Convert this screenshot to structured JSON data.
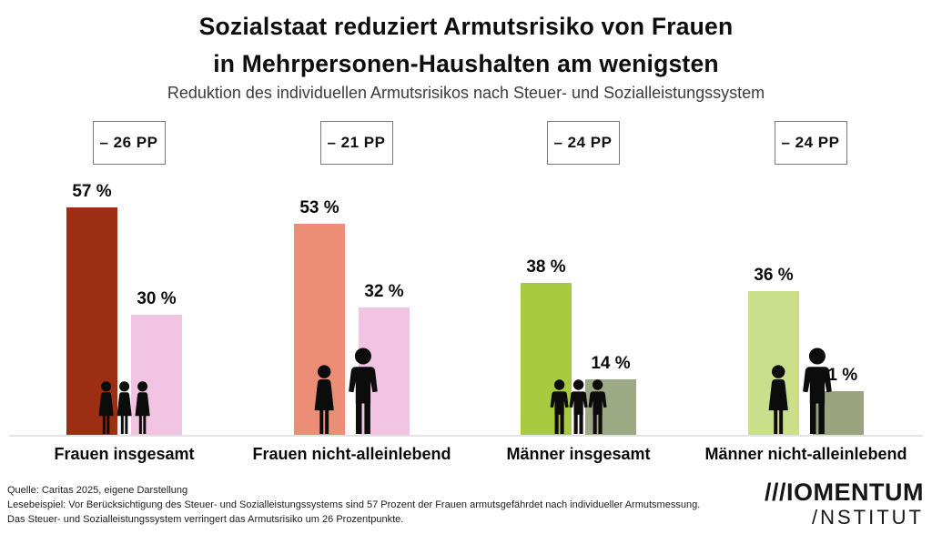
{
  "title": {
    "line1": "Sozialstaat reduziert Armutsrisiko von Frauen",
    "line2": "in Mehrpersonen-Haushalten am wenigsten"
  },
  "subtitle": "Reduktion des individuellen Armutsrisikos nach Steuer- und Sozialleistungssystem",
  "chart_data": {
    "type": "bar",
    "title": "Sozialstaat reduziert Armutsrisiko von Frauen in Mehrpersonen-Haushalten am wenigsten",
    "subtitle": "Reduktion des individuellen Armutsrisikos nach Steuer- und Sozialleistungssystem",
    "unit": "%",
    "ylim": [
      0,
      60
    ],
    "grid": false,
    "legend": false,
    "categories": [
      "Frauen insgesamt",
      "Frauen nicht-alleinlebend",
      "Männer insgesamt",
      "Männer nicht-alleinlebend"
    ],
    "groups": [
      {
        "category": "Frauen insgesamt",
        "annotation": "– 26 PP",
        "pictogram": "three-women",
        "bars": [
          {
            "value": 57,
            "label": "57 %",
            "color": "#9B2E13"
          },
          {
            "value": 30,
            "label": "30 %",
            "color": "#F1C4E2"
          }
        ]
      },
      {
        "category": "Frauen nicht-alleinlebend",
        "annotation": "– 21 PP",
        "pictogram": "couple",
        "bars": [
          {
            "value": 53,
            "label": "53 %",
            "color": "#EC8E76"
          },
          {
            "value": 32,
            "label": "32 %",
            "color": "#F1C4E2"
          }
        ]
      },
      {
        "category": "Männer insgesamt",
        "annotation": "– 24 PP",
        "pictogram": "three-men",
        "bars": [
          {
            "value": 38,
            "label": "38 %",
            "color": "#A9C940"
          },
          {
            "value": 14,
            "label": "14 %",
            "color": "#9DA884"
          }
        ]
      },
      {
        "category": "Männer nicht-alleinlebend",
        "annotation": "– 24 PP",
        "pictogram": "couple",
        "bars": [
          {
            "value": 36,
            "label": "36 %",
            "color": "#CADE8C"
          },
          {
            "value": 11,
            "label": "11 %",
            "color": "#9AA37D"
          }
        ]
      }
    ]
  },
  "footer": {
    "lines": [
      "Quelle: Caritas 2025, eigene Darstellung",
      "Lesebeispiel: Vor Berücksichtigung des Steuer- und Sozialleistungssystems sind 57 Prozent der Frauen armutsgefährdet nach individueller Armutsmessung.",
      "Das Steuer- und Sozialleistungssystem verringert das Armutsrisiko um 26 Prozentpunkte."
    ]
  },
  "logo": {
    "line1": "///IOMENTUM",
    "line2": "/NSTITUT"
  }
}
